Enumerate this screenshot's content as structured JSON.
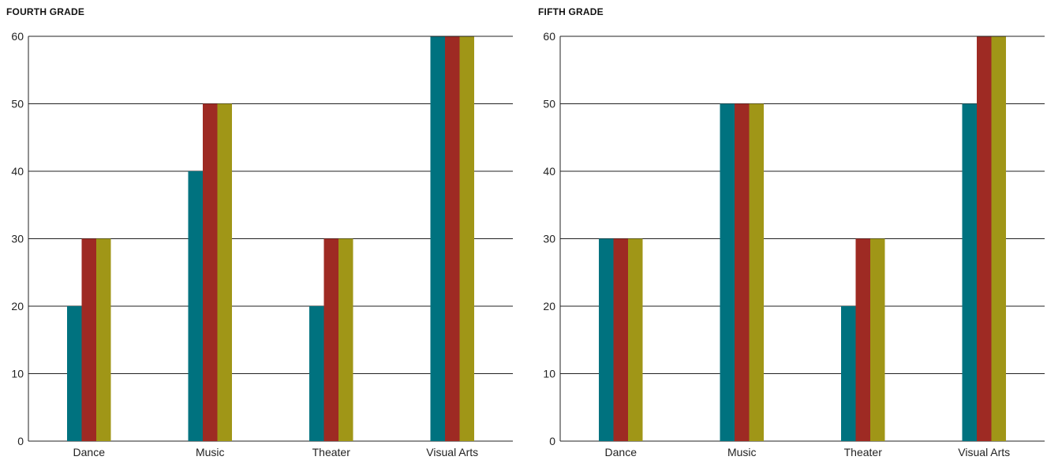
{
  "chart_data": [
    {
      "type": "bar",
      "title": "FOURTH GRADE",
      "xlabel": "",
      "ylabel": "",
      "ylim": [
        0,
        60
      ],
      "yticks": [
        0,
        10,
        20,
        30,
        40,
        50,
        60
      ],
      "grid": true,
      "categories": [
        "Dance",
        "Music",
        "Theater",
        "Visual Arts"
      ],
      "series": [
        {
          "color": "#00727F",
          "values": [
            20,
            40,
            20,
            60
          ]
        },
        {
          "color": "#9E2A23",
          "values": [
            30,
            50,
            30,
            60
          ]
        },
        {
          "color": "#A09617",
          "values": [
            30,
            50,
            30,
            60
          ]
        }
      ]
    },
    {
      "type": "bar",
      "title": "FIFTH GRADE",
      "xlabel": "",
      "ylabel": "",
      "ylim": [
        0,
        60
      ],
      "yticks": [
        0,
        10,
        20,
        30,
        40,
        50,
        60
      ],
      "grid": true,
      "categories": [
        "Dance",
        "Music",
        "Theater",
        "Visual Arts"
      ],
      "series": [
        {
          "color": "#00727F",
          "values": [
            30,
            50,
            20,
            50
          ]
        },
        {
          "color": "#9E2A23",
          "values": [
            30,
            50,
            30,
            60
          ]
        },
        {
          "color": "#A09617",
          "values": [
            30,
            50,
            30,
            60
          ]
        }
      ]
    }
  ]
}
